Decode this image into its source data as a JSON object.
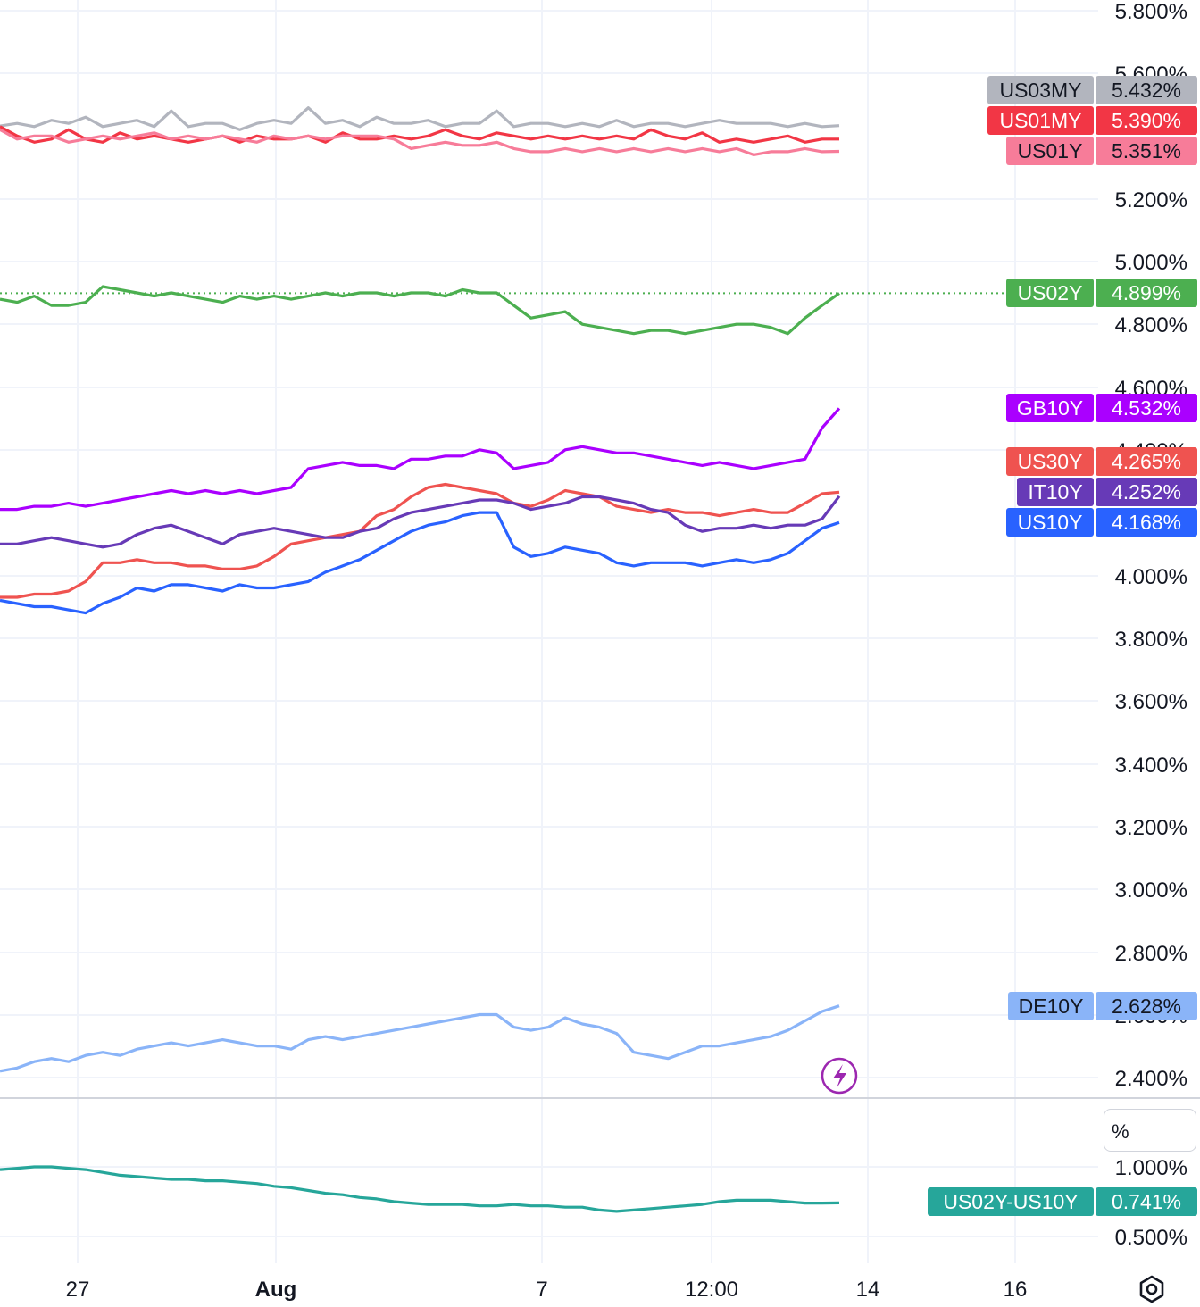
{
  "chart_data": {
    "type": "line",
    "main_pane": {
      "y_ticks": [
        "5.800%",
        "5.600%",
        "5.200%",
        "5.000%",
        "4.800%",
        "4.600%",
        "4.400%",
        "4.000%",
        "3.800%",
        "3.600%",
        "3.400%",
        "3.200%",
        "3.000%",
        "2.800%",
        "2.600%",
        "2.400%"
      ],
      "series": [
        {
          "name": "US03MY",
          "value_label": "5.432%",
          "color": "#b2b5be",
          "text_color": "#131722",
          "last": 5.432,
          "values": [
            5.432,
            5.44,
            5.43,
            5.45,
            5.44,
            5.46,
            5.43,
            5.44,
            5.45,
            5.43,
            5.48,
            5.43,
            5.44,
            5.44,
            5.42,
            5.44,
            5.45,
            5.44,
            5.49,
            5.44,
            5.45,
            5.43,
            5.46,
            5.44,
            5.44,
            5.45,
            5.43,
            5.44,
            5.44,
            5.48,
            5.43,
            5.44,
            5.44,
            5.43,
            5.44,
            5.43,
            5.45,
            5.43,
            5.44,
            5.44,
            5.43,
            5.44,
            5.45,
            5.44,
            5.44,
            5.44,
            5.43,
            5.44,
            5.43,
            5.433
          ]
        },
        {
          "name": "US01MY",
          "value_label": "5.390%",
          "color": "#f23645",
          "text_color": "#ffffff",
          "last": 5.39,
          "values": [
            5.43,
            5.4,
            5.38,
            5.39,
            5.42,
            5.39,
            5.38,
            5.41,
            5.39,
            5.4,
            5.39,
            5.38,
            5.39,
            5.4,
            5.38,
            5.4,
            5.39,
            5.39,
            5.4,
            5.38,
            5.41,
            5.39,
            5.39,
            5.4,
            5.39,
            5.4,
            5.42,
            5.4,
            5.39,
            5.41,
            5.4,
            5.39,
            5.4,
            5.39,
            5.4,
            5.39,
            5.4,
            5.39,
            5.42,
            5.4,
            5.39,
            5.41,
            5.38,
            5.39,
            5.38,
            5.39,
            5.4,
            5.38,
            5.39,
            5.39
          ]
        },
        {
          "name": "US01Y",
          "value_label": "5.351%",
          "color": "#f77c99",
          "text_color": "#131722",
          "last": 5.351,
          "values": [
            5.42,
            5.39,
            5.4,
            5.4,
            5.38,
            5.39,
            5.4,
            5.39,
            5.4,
            5.41,
            5.39,
            5.4,
            5.39,
            5.4,
            5.39,
            5.38,
            5.4,
            5.39,
            5.4,
            5.39,
            5.4,
            5.4,
            5.4,
            5.39,
            5.36,
            5.37,
            5.38,
            5.37,
            5.37,
            5.38,
            5.36,
            5.35,
            5.35,
            5.36,
            5.35,
            5.36,
            5.35,
            5.36,
            5.35,
            5.36,
            5.35,
            5.36,
            5.35,
            5.36,
            5.34,
            5.35,
            5.35,
            5.36,
            5.35,
            5.351
          ]
        },
        {
          "name": "US02Y",
          "value_label": "4.899%",
          "color": "#4caf50",
          "text_color": "#ffffff",
          "last": 4.899,
          "values": [
            4.88,
            4.87,
            4.89,
            4.86,
            4.86,
            4.87,
            4.92,
            4.91,
            4.9,
            4.89,
            4.9,
            4.89,
            4.88,
            4.87,
            4.89,
            4.88,
            4.89,
            4.88,
            4.89,
            4.9,
            4.89,
            4.9,
            4.9,
            4.89,
            4.9,
            4.9,
            4.89,
            4.91,
            4.9,
            4.9,
            4.86,
            4.82,
            4.83,
            4.84,
            4.8,
            4.79,
            4.78,
            4.77,
            4.78,
            4.78,
            4.77,
            4.78,
            4.79,
            4.8,
            4.8,
            4.79,
            4.77,
            4.82,
            4.86,
            4.899
          ]
        },
        {
          "name": "GB10Y",
          "value_label": "4.532%",
          "color": "#aa00ff",
          "text_color": "#ffffff",
          "last": 4.532,
          "values": [
            4.21,
            4.21,
            4.22,
            4.22,
            4.23,
            4.22,
            4.23,
            4.24,
            4.25,
            4.26,
            4.27,
            4.26,
            4.27,
            4.26,
            4.27,
            4.26,
            4.27,
            4.28,
            4.34,
            4.35,
            4.36,
            4.35,
            4.35,
            4.34,
            4.37,
            4.37,
            4.38,
            4.38,
            4.4,
            4.39,
            4.34,
            4.35,
            4.36,
            4.4,
            4.41,
            4.4,
            4.39,
            4.39,
            4.38,
            4.37,
            4.36,
            4.35,
            4.36,
            4.35,
            4.34,
            4.35,
            4.36,
            4.37,
            4.47,
            4.532
          ]
        },
        {
          "name": "US30Y",
          "value_label": "4.265%",
          "color": "#ef5350",
          "text_color": "#ffffff",
          "last": 4.265,
          "values": [
            3.93,
            3.93,
            3.94,
            3.94,
            3.95,
            3.98,
            4.04,
            4.04,
            4.05,
            4.04,
            4.04,
            4.03,
            4.03,
            4.02,
            4.02,
            4.03,
            4.06,
            4.1,
            4.11,
            4.12,
            4.13,
            4.14,
            4.19,
            4.21,
            4.25,
            4.28,
            4.29,
            4.28,
            4.27,
            4.26,
            4.23,
            4.22,
            4.24,
            4.27,
            4.26,
            4.25,
            4.22,
            4.21,
            4.2,
            4.21,
            4.2,
            4.2,
            4.19,
            4.2,
            4.21,
            4.2,
            4.2,
            4.23,
            4.26,
            4.265
          ]
        },
        {
          "name": "IT10Y",
          "value_label": "4.252%",
          "color": "#673ab7",
          "text_color": "#ffffff",
          "last": 4.252,
          "values": [
            4.1,
            4.1,
            4.11,
            4.12,
            4.11,
            4.1,
            4.09,
            4.1,
            4.13,
            4.15,
            4.16,
            4.14,
            4.12,
            4.1,
            4.13,
            4.14,
            4.15,
            4.14,
            4.13,
            4.12,
            4.12,
            4.14,
            4.15,
            4.18,
            4.2,
            4.21,
            4.22,
            4.23,
            4.24,
            4.24,
            4.23,
            4.21,
            4.22,
            4.23,
            4.25,
            4.25,
            4.24,
            4.23,
            4.21,
            4.2,
            4.16,
            4.14,
            4.15,
            4.15,
            4.16,
            4.15,
            4.16,
            4.16,
            4.18,
            4.252
          ]
        },
        {
          "name": "US10Y",
          "value_label": "4.168%",
          "color": "#2962ff",
          "text_color": "#ffffff",
          "last": 4.168,
          "values": [
            3.92,
            3.91,
            3.9,
            3.9,
            3.89,
            3.88,
            3.91,
            3.93,
            3.96,
            3.95,
            3.97,
            3.97,
            3.96,
            3.95,
            3.97,
            3.96,
            3.96,
            3.97,
            3.98,
            4.01,
            4.03,
            4.05,
            4.08,
            4.11,
            4.14,
            4.16,
            4.17,
            4.19,
            4.2,
            4.2,
            4.09,
            4.06,
            4.07,
            4.09,
            4.08,
            4.07,
            4.04,
            4.03,
            4.04,
            4.04,
            4.04,
            4.03,
            4.04,
            4.05,
            4.04,
            4.05,
            4.07,
            4.11,
            4.15,
            4.168
          ]
        },
        {
          "name": "DE10Y",
          "value_label": "2.628%",
          "color": "#8ab4f8",
          "text_color": "#131722",
          "last": 2.628,
          "values": [
            2.42,
            2.43,
            2.45,
            2.46,
            2.45,
            2.47,
            2.48,
            2.47,
            2.49,
            2.5,
            2.51,
            2.5,
            2.51,
            2.52,
            2.51,
            2.5,
            2.5,
            2.49,
            2.52,
            2.53,
            2.52,
            2.53,
            2.54,
            2.55,
            2.56,
            2.57,
            2.58,
            2.59,
            2.6,
            2.6,
            2.56,
            2.55,
            2.56,
            2.59,
            2.57,
            2.56,
            2.54,
            2.48,
            2.47,
            2.46,
            2.48,
            2.5,
            2.5,
            2.51,
            2.52,
            2.53,
            2.55,
            2.58,
            2.61,
            2.628
          ]
        }
      ]
    },
    "sub_pane": {
      "unit_label": "%",
      "y_ticks": [
        "1.000%",
        "0.500%"
      ],
      "series": [
        {
          "name": "US02Y-US10Y",
          "value_label": "0.741%",
          "color": "#26a69a",
          "text_color": "#ffffff",
          "last": 0.741,
          "values": [
            0.98,
            0.99,
            1.0,
            1.0,
            0.99,
            0.98,
            0.96,
            0.94,
            0.93,
            0.92,
            0.91,
            0.91,
            0.9,
            0.9,
            0.89,
            0.88,
            0.86,
            0.85,
            0.83,
            0.81,
            0.8,
            0.78,
            0.77,
            0.75,
            0.74,
            0.73,
            0.73,
            0.73,
            0.72,
            0.72,
            0.73,
            0.72,
            0.72,
            0.71,
            0.71,
            0.69,
            0.68,
            0.69,
            0.7,
            0.71,
            0.72,
            0.73,
            0.75,
            0.76,
            0.76,
            0.76,
            0.75,
            0.74,
            0.74,
            0.741
          ]
        }
      ]
    },
    "x_ticks": [
      "27",
      "Aug",
      "7",
      "12:00",
      "14",
      "16"
    ],
    "grid": true,
    "legend": "value tags on right price axis"
  },
  "icons": {
    "flash": "lightning-icon",
    "settings": "settings-icon"
  }
}
